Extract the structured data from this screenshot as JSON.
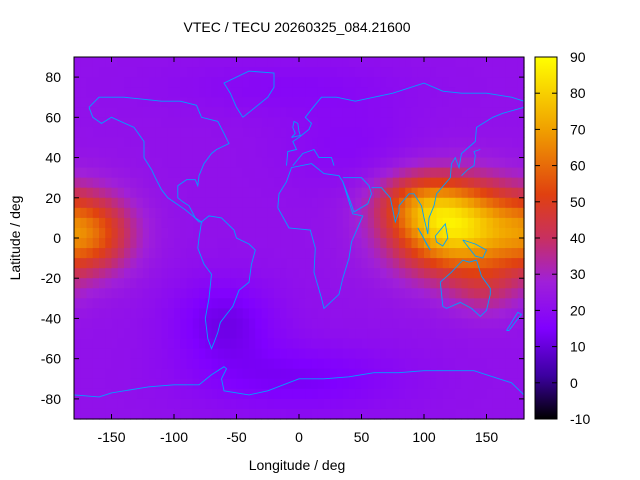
{
  "chart_data": {
    "type": "heatmap",
    "title": "VTEC / TECU 20260325_084.21600",
    "xlabel": "Longitude / deg",
    "ylabel": "Latitude / deg",
    "xlim": [
      -180,
      180
    ],
    "ylim": [
      -90,
      90
    ],
    "xticks": [
      -150,
      -100,
      -50,
      0,
      50,
      100,
      150
    ],
    "yticks": [
      -80,
      -60,
      -40,
      -20,
      0,
      20,
      40,
      60,
      80
    ],
    "colorbar": {
      "range": [
        -10,
        90
      ],
      "ticks": [
        -10,
        0,
        10,
        20,
        30,
        40,
        50,
        60,
        70,
        80,
        90
      ],
      "colormap": [
        "#000000",
        "#3c00a0",
        "#8000ff",
        "#a020d8",
        "#c83060",
        "#e04010",
        "#f0a000",
        "#ffff00"
      ]
    },
    "features": [
      {
        "name": "equatorial-anomaly-asia-australia",
        "lon": 125,
        "lat": 5,
        "vtec": 80
      },
      {
        "name": "equatorial-anomaly-east-pacific",
        "lon": -165,
        "lat": 0,
        "vtec": 55
      },
      {
        "name": "background-midlatitude",
        "vtec": 20
      },
      {
        "name": "south-pacific-trough",
        "lon": -60,
        "lat": -45,
        "vtec": 12
      }
    ],
    "overlay": "coastlines",
    "overlay_color": "#00a0ff",
    "border_color": "#000000"
  }
}
